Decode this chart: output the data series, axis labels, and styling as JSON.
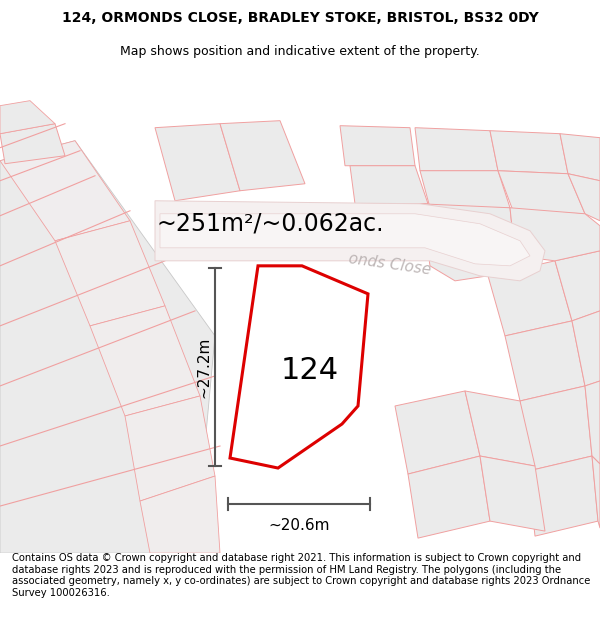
{
  "title_line1": "124, ORMONDS CLOSE, BRADLEY STOKE, BRISTOL, BS32 0DY",
  "title_line2": "Map shows position and indicative extent of the property.",
  "area_label": "~251m²/~0.062ac.",
  "plot_number": "124",
  "width_label": "~20.6m",
  "height_label": "~27.2m",
  "road_label": "onds Close",
  "footer_text": "Contains OS data © Crown copyright and database right 2021. This information is subject to Crown copyright and database rights 2023 and is reproduced with the permission of HM Land Registry. The polygons (including the associated geometry, namely x, y co-ordinates) are subject to Crown copyright and database rights 2023 Ordnance Survey 100026316.",
  "bg_color": "#ffffff",
  "map_bg": "#ffffff",
  "plot_fill": "#ffffff",
  "plot_edge": "#dd0000",
  "neighbor_fill": "#ebebeb",
  "neighbor_edge": "#f0a0a0",
  "road_fill": "#f5f0f0",
  "road_edge": "#e8d0d0",
  "dim_line_color": "#555555",
  "title_fontsize": 10,
  "subtitle_fontsize": 9,
  "area_fontsize": 17,
  "plot_num_fontsize": 22,
  "dim_fontsize": 11,
  "footer_fontsize": 7.2
}
